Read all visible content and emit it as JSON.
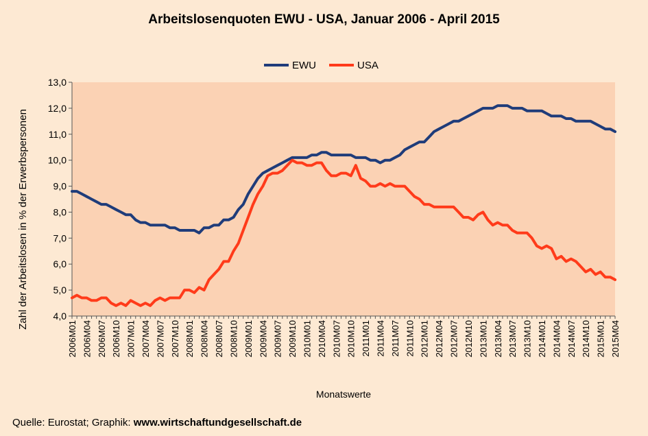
{
  "chart_data": {
    "type": "line",
    "title": "Arbeitslosenquoten EWU - USA, Januar 2006 - April 2015",
    "xlabel": "Monatswerte",
    "ylabel": "Zahl der Arbeitslosen in % der Erwerbspersonen",
    "ylim": [
      4.0,
      13.0
    ],
    "yticks": [
      "4,0",
      "5,0",
      "6,0",
      "7,0",
      "8,0",
      "9,0",
      "10,0",
      "11,0",
      "12,0",
      "13,0"
    ],
    "x_start": "2006M01",
    "x_end": "2015M04",
    "x_tick_labels": [
      "2006M01",
      "2006M04",
      "2006M07",
      "2006M10",
      "2007M01",
      "2007M04",
      "2007M07",
      "2007M10",
      "2008M01",
      "2008M04",
      "2008M07",
      "2008M10",
      "2009M01",
      "2009M04",
      "2009M07",
      "2009M10",
      "2010M01",
      "2010M04",
      "2010M07",
      "2010M10",
      "2011M01",
      "2011M04",
      "2011M07",
      "2011M10",
      "2012M01",
      "2012M04",
      "2012M07",
      "2012M10",
      "2013M01",
      "2013M04",
      "2013M07",
      "2013M10",
      "2014M01",
      "2014M04",
      "2014M07",
      "2014M10",
      "2015M01",
      "2015M04"
    ],
    "legend_position": "top",
    "grid": false,
    "series": [
      {
        "name": "EWU",
        "color": "#1f3c7a",
        "values": [
          8.8,
          8.8,
          8.7,
          8.6,
          8.5,
          8.4,
          8.3,
          8.3,
          8.2,
          8.1,
          8.0,
          7.9,
          7.9,
          7.7,
          7.6,
          7.6,
          7.5,
          7.5,
          7.5,
          7.5,
          7.4,
          7.4,
          7.3,
          7.3,
          7.3,
          7.3,
          7.2,
          7.4,
          7.4,
          7.5,
          7.5,
          7.7,
          7.7,
          7.8,
          8.1,
          8.3,
          8.7,
          9.0,
          9.3,
          9.5,
          9.6,
          9.7,
          9.8,
          9.9,
          10.0,
          10.1,
          10.1,
          10.1,
          10.1,
          10.2,
          10.2,
          10.3,
          10.3,
          10.2,
          10.2,
          10.2,
          10.2,
          10.2,
          10.1,
          10.1,
          10.1,
          10.0,
          10.0,
          9.9,
          10.0,
          10.0,
          10.1,
          10.2,
          10.4,
          10.5,
          10.6,
          10.7,
          10.7,
          10.9,
          11.1,
          11.2,
          11.3,
          11.4,
          11.5,
          11.5,
          11.6,
          11.7,
          11.8,
          11.9,
          12.0,
          12.0,
          12.0,
          12.1,
          12.1,
          12.1,
          12.0,
          12.0,
          12.0,
          11.9,
          11.9,
          11.9,
          11.9,
          11.8,
          11.7,
          11.7,
          11.7,
          11.6,
          11.6,
          11.5,
          11.5,
          11.5,
          11.5,
          11.4,
          11.3,
          11.2,
          11.2,
          11.1
        ]
      },
      {
        "name": "USA",
        "color": "#ff3b1a",
        "values": [
          4.7,
          4.8,
          4.7,
          4.7,
          4.6,
          4.6,
          4.7,
          4.7,
          4.5,
          4.4,
          4.5,
          4.4,
          4.6,
          4.5,
          4.4,
          4.5,
          4.4,
          4.6,
          4.7,
          4.6,
          4.7,
          4.7,
          4.7,
          5.0,
          5.0,
          4.9,
          5.1,
          5.0,
          5.4,
          5.6,
          5.8,
          6.1,
          6.1,
          6.5,
          6.8,
          7.3,
          7.8,
          8.3,
          8.7,
          9.0,
          9.4,
          9.5,
          9.5,
          9.6,
          9.8,
          10.0,
          9.9,
          9.9,
          9.8,
          9.8,
          9.9,
          9.9,
          9.6,
          9.4,
          9.4,
          9.5,
          9.5,
          9.4,
          9.8,
          9.3,
          9.2,
          9.0,
          9.0,
          9.1,
          9.0,
          9.1,
          9.0,
          9.0,
          9.0,
          8.8,
          8.6,
          8.5,
          8.3,
          8.3,
          8.2,
          8.2,
          8.2,
          8.2,
          8.2,
          8.0,
          7.8,
          7.8,
          7.7,
          7.9,
          8.0,
          7.7,
          7.5,
          7.6,
          7.5,
          7.5,
          7.3,
          7.2,
          7.2,
          7.2,
          7.0,
          6.7,
          6.6,
          6.7,
          6.6,
          6.2,
          6.3,
          6.1,
          6.2,
          6.1,
          5.9,
          5.7,
          5.8,
          5.6,
          5.7,
          5.5,
          5.5,
          5.4
        ]
      }
    ]
  },
  "footer": {
    "source_prefix": "Quelle: Eurostat; Graphik: ",
    "source_site": "www.wirtschaftundgesellschaft.de"
  }
}
